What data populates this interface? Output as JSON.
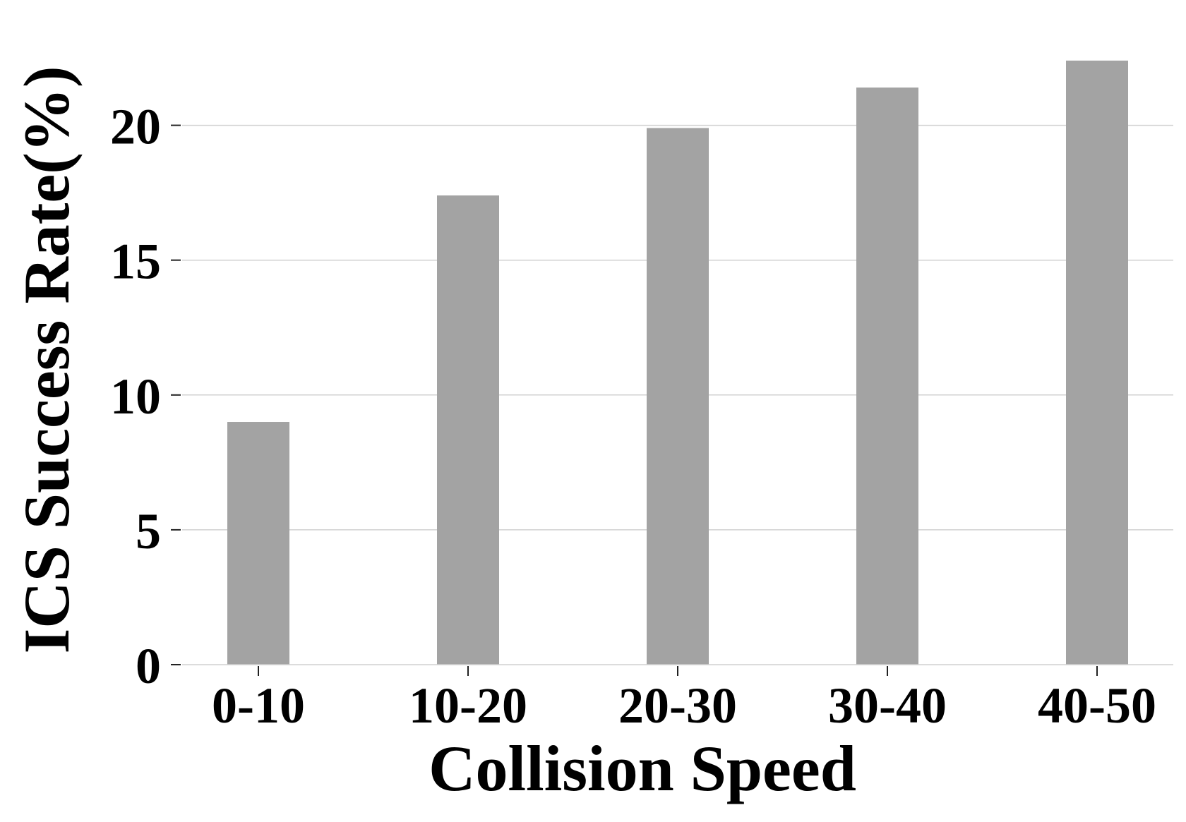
{
  "chart_data": {
    "type": "bar",
    "title": "",
    "xlabel": "Collision Speed",
    "ylabel": "ICS Success Rate(%)",
    "categories": [
      "0-10",
      "10-20",
      "20-30",
      "30-40",
      "40-50"
    ],
    "values": [
      9.0,
      17.4,
      19.9,
      21.4,
      22.4
    ],
    "ylim": [
      0,
      23.6
    ],
    "yticks": [
      0,
      5,
      10,
      15,
      20
    ],
    "grid": "horizontal",
    "legend": "none",
    "colors": {
      "bar": "#a3a3a3",
      "grid": "#d0d0d0",
      "axis": "#d0d0d0",
      "text": "#000000"
    }
  }
}
